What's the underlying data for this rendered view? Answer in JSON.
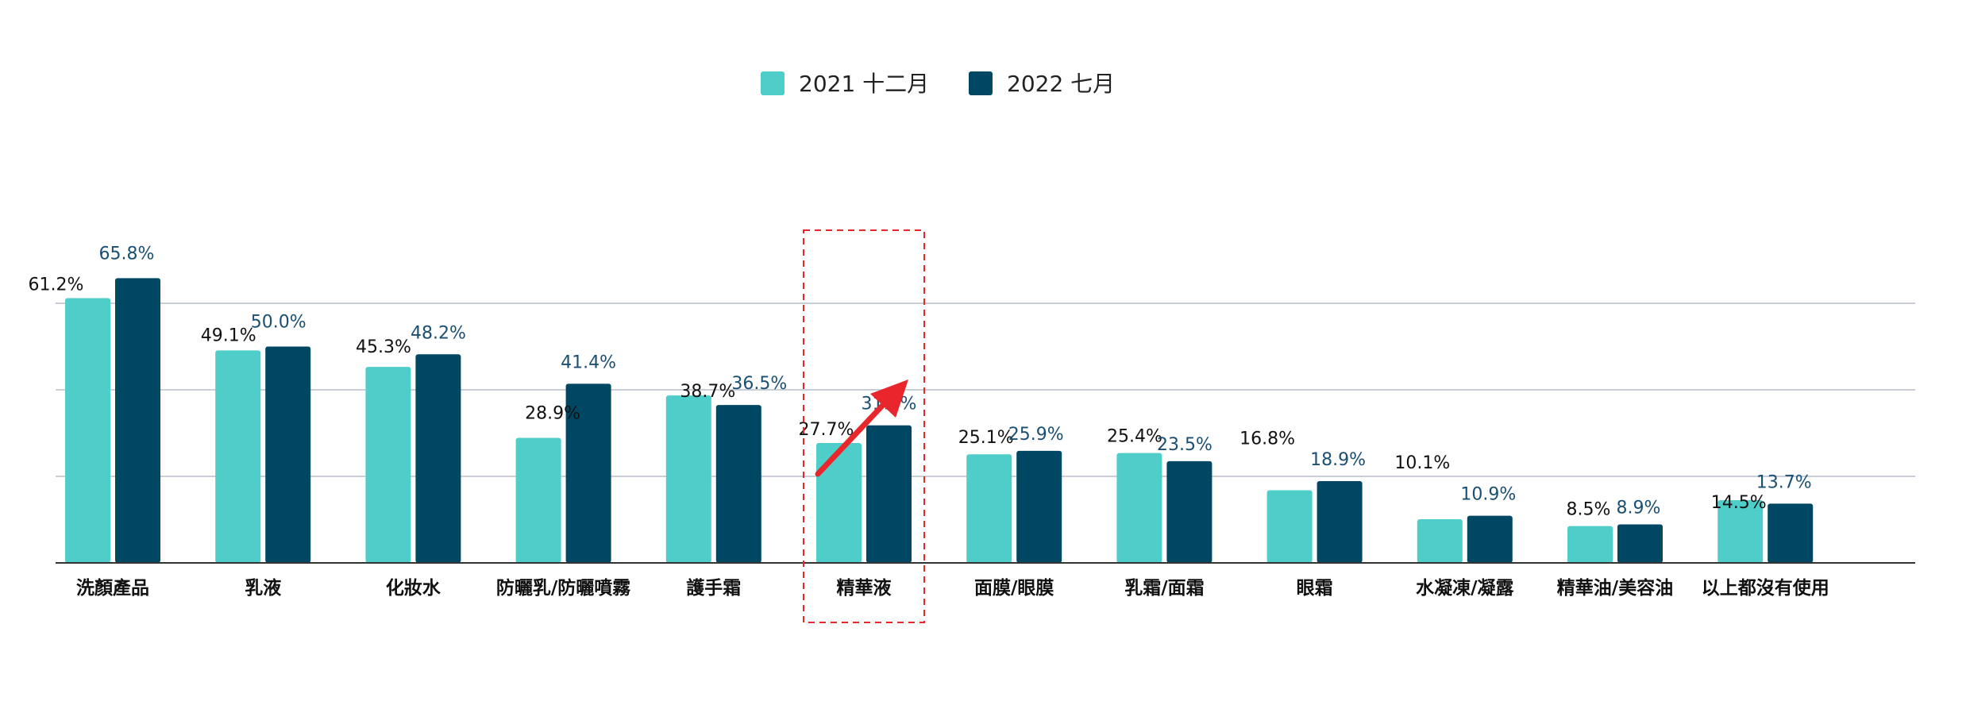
{
  "chart_data": {
    "type": "bar",
    "title": "",
    "xlabel": "",
    "ylabel": "",
    "ylim": [
      0,
      70
    ],
    "grid": true,
    "legend_position": "top-center",
    "categories": [
      "洗顏產品",
      "乳液",
      "化妝水",
      "防曬乳/防曬噴霧",
      "護手霜",
      "精華液",
      "面膜/眼膜",
      "乳霜/面霜",
      "眼霜",
      "水凝凍/凝露",
      "精華油/美容油",
      "以上都沒有使用"
    ],
    "series": [
      {
        "name": "2021 十二月",
        "color": "#4ecdc9",
        "label_color": "#111111",
        "values": [
          61.2,
          49.1,
          45.3,
          28.9,
          38.7,
          27.7,
          25.1,
          25.4,
          16.8,
          10.1,
          8.5,
          14.5
        ],
        "labels": [
          "61.2%",
          "49.1%",
          "45.3%",
          "28.9%",
          "38.7%",
          "27.7%",
          "25.1%",
          "25.4%",
          "16.8%",
          "10.1%",
          "8.5%",
          "14.5%"
        ]
      },
      {
        "name": "2022 七月",
        "color": "#004764",
        "label_color": "#1b4f72",
        "values": [
          65.8,
          50.0,
          48.2,
          41.4,
          36.5,
          31.8,
          25.9,
          23.5,
          18.9,
          10.9,
          8.9,
          13.7
        ],
        "labels": [
          "65.8%",
          "50.0%",
          "48.2%",
          "41.4%",
          "36.5%",
          "31.8%",
          "25.9%",
          "23.5%",
          "18.9%",
          "10.9%",
          "8.9%",
          "13.7%"
        ]
      }
    ],
    "annotations": [
      {
        "type": "dashed-box",
        "category": "精華液",
        "color": "#e8262b"
      },
      {
        "type": "arrow",
        "category": "精華液",
        "color": "#e8262b",
        "direction": "up-right"
      }
    ]
  },
  "colors": {
    "gridline": "#c9cdd6",
    "axis": "#333333",
    "category_label": "#111111",
    "highlight": "#e8262b"
  }
}
